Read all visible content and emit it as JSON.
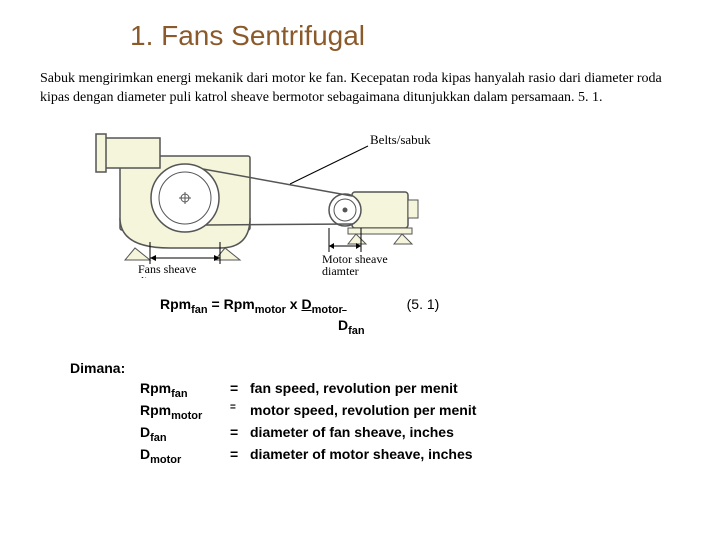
{
  "title": "1.     Fans   Sentrifugal",
  "paragraph": "Sabuk mengirimkan energi mekanik dari motor ke fan. Kecepatan roda kipas hanyalah rasio dari diameter roda kipas dengan diameter puli katrol sheave bermotor sebagaimana ditunjukkan dalam persamaan. 5. 1.",
  "diagram": {
    "bg_fill": "#f5f5dc",
    "stroke": "#555555",
    "label_belts": "Belts/sabuk",
    "label_fan": "Fans sheave diameter",
    "label_motor": "Motor sheave diamter"
  },
  "formula": {
    "lhs": "Rpm",
    "lhs_sub": "fan",
    "eq": " = Rpm",
    "r1_sub": "motor",
    "mult": " x  ",
    "num": "D",
    "num_sub": "motor",
    "den": "D",
    "den_sub": "fan",
    "eq_number": "(5. 1)"
  },
  "where": {
    "label": "Dimana:",
    "rows": [
      {
        "sym": "Rpm",
        "sub": "fan",
        "eq": "=",
        "def": "fan speed, revolution per menit"
      },
      {
        "sym": "Rpm",
        "sub": "motor",
        "eq": "=",
        "def": "motor speed, revolution per menit",
        "supeq": true
      },
      {
        "sym": "D",
        "sub": "fan",
        "eq": "=",
        "def": " diameter of fan sheave, inches"
      },
      {
        "sym": "D",
        "sub": "motor",
        "eq": "=",
        "def": " diameter of motor sheave, inches"
      }
    ]
  }
}
